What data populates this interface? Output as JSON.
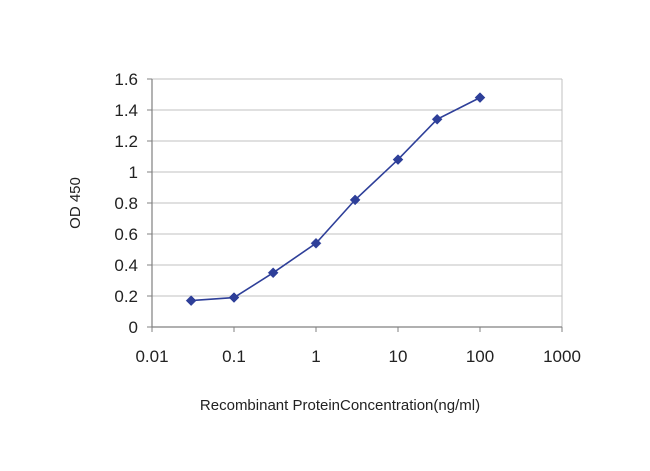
{
  "chart_data": {
    "type": "line",
    "title": "",
    "xlabel": "Recombinant ProteinConcentration(ng/ml)",
    "ylabel": "OD 450",
    "x_scale": "log",
    "xlim": [
      0.01,
      1000
    ],
    "ylim": [
      0,
      1.6
    ],
    "x_ticks": [
      0.01,
      0.1,
      1,
      10,
      100,
      1000
    ],
    "x_tick_labels": [
      "0.01",
      "0.1",
      "1",
      "10",
      "100",
      "1000"
    ],
    "y_ticks": [
      0,
      0.2,
      0.4,
      0.6,
      0.8,
      1,
      1.2,
      1.4,
      1.6
    ],
    "y_tick_labels": [
      "0",
      "0.2",
      "0.4",
      "0.6",
      "0.8",
      "1",
      "1.2",
      "1.4",
      "1.6"
    ],
    "grid": "horizontal",
    "legend": "none",
    "series": [
      {
        "x": [
          0.03,
          0.1,
          0.3,
          1,
          3,
          10,
          30,
          100
        ],
        "y": [
          0.17,
          0.19,
          0.35,
          0.54,
          0.82,
          1.08,
          1.34,
          1.48
        ],
        "marker": "diamond",
        "color": "#2e3f99"
      }
    ],
    "colors": {
      "line": "#2e3f99",
      "marker": "#2e3f99",
      "grid": "#c0c0c0",
      "axis": "#808080"
    }
  }
}
